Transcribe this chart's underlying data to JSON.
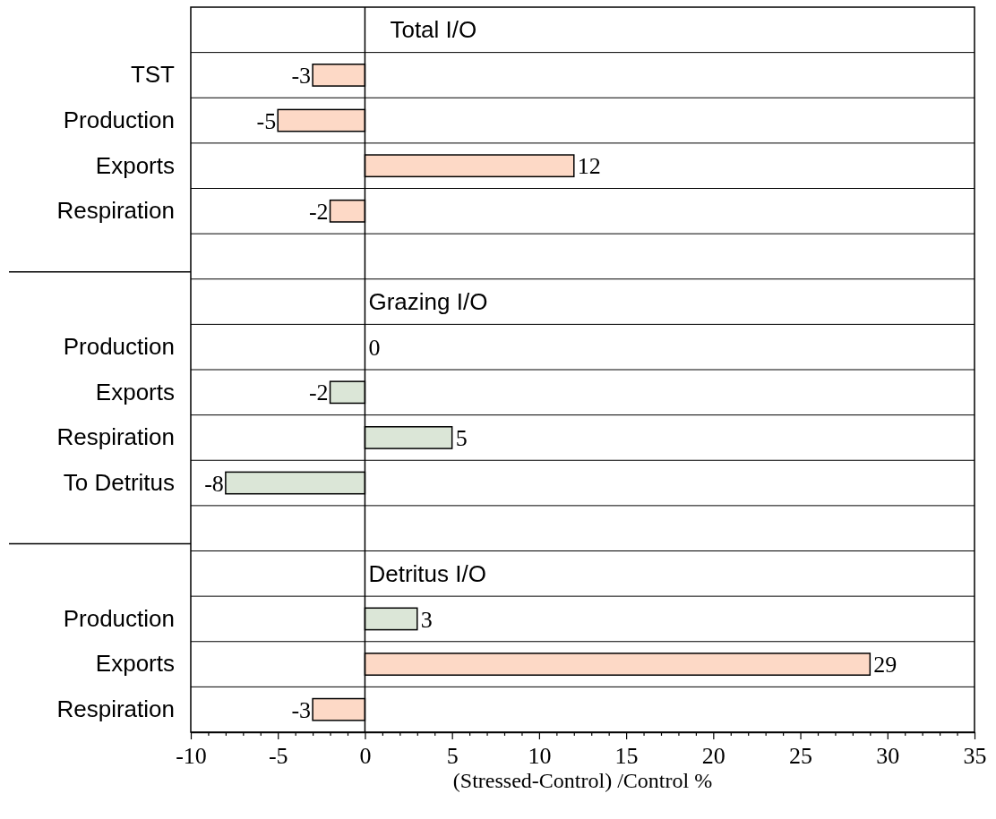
{
  "chart_data": {
    "type": "bar",
    "orientation": "horizontal",
    "xlabel": "(Stressed-Control) /Control %",
    "categories": [
      null,
      "TST",
      "Production",
      "Exports",
      "Respiration",
      null,
      null,
      "Production",
      "Exports",
      "Respiration",
      "To Detritus",
      null,
      null,
      "Production",
      "Exports",
      "Respiration"
    ],
    "values": [
      null,
      -3,
      -5,
      12,
      -2,
      null,
      null,
      0,
      -2,
      5,
      -8,
      null,
      null,
      3,
      29,
      -3
    ],
    "colors": [
      null,
      "#fdd9c6",
      "#fdd9c6",
      "#fdd9c6",
      "#fdd9c6",
      null,
      null,
      "#dbe6d7",
      "#dbe6d7",
      "#dbe6d7",
      "#dbe6d7",
      null,
      null,
      "#dbe6d7",
      "#fdd9c6",
      "#fdd9c6"
    ],
    "annotations": [
      "Total I/O",
      "Grazing I/O",
      "Detritus I/O"
    ],
    "data_labels": true,
    "grid": "y",
    "ref_lines": [
      {
        "axis": "x",
        "value": 0
      }
    ],
    "xlim": [
      -10,
      35
    ],
    "xticks": [
      -10,
      {
        "value": -9,
        "label": null
      },
      {
        "value": -8,
        "label": null
      },
      {
        "value": -7,
        "label": null
      },
      {
        "value": -6,
        "label": null
      },
      -5,
      {
        "value": -4,
        "label": null
      },
      {
        "value": -3,
        "label": null
      },
      {
        "value": -2,
        "label": null
      },
      {
        "value": -1,
        "label": null
      },
      0,
      {
        "value": 1,
        "label": null
      },
      {
        "value": 2,
        "label": null
      },
      {
        "value": 3,
        "label": null
      },
      {
        "value": 4,
        "label": null
      },
      5,
      {
        "value": 6,
        "label": null
      },
      {
        "value": 7,
        "label": null
      },
      {
        "value": 8,
        "label": null
      },
      {
        "value": 9,
        "label": null
      },
      10,
      {
        "value": 11,
        "label": null
      },
      {
        "value": 12,
        "label": null
      },
      {
        "value": 13,
        "label": null
      },
      {
        "value": 14,
        "label": null
      },
      15,
      {
        "value": 16,
        "label": null
      },
      {
        "value": 17,
        "label": null
      },
      {
        "value": 18,
        "label": null
      },
      {
        "value": 19,
        "label": null
      },
      20,
      {
        "value": 21,
        "label": null
      },
      {
        "value": 22,
        "label": null
      },
      {
        "value": 23,
        "label": null
      },
      {
        "value": 24,
        "label": null
      },
      25,
      {
        "value": 26,
        "label": null
      },
      {
        "value": 27,
        "label": null
      },
      {
        "value": 28,
        "label": null
      },
      {
        "value": 29,
        "label": null
      },
      30,
      {
        "value": 31,
        "label": null
      },
      {
        "value": 32,
        "label": null
      },
      {
        "value": 33,
        "label": null
      },
      {
        "value": 34,
        "label": null
      },
      35
    ]
  }
}
